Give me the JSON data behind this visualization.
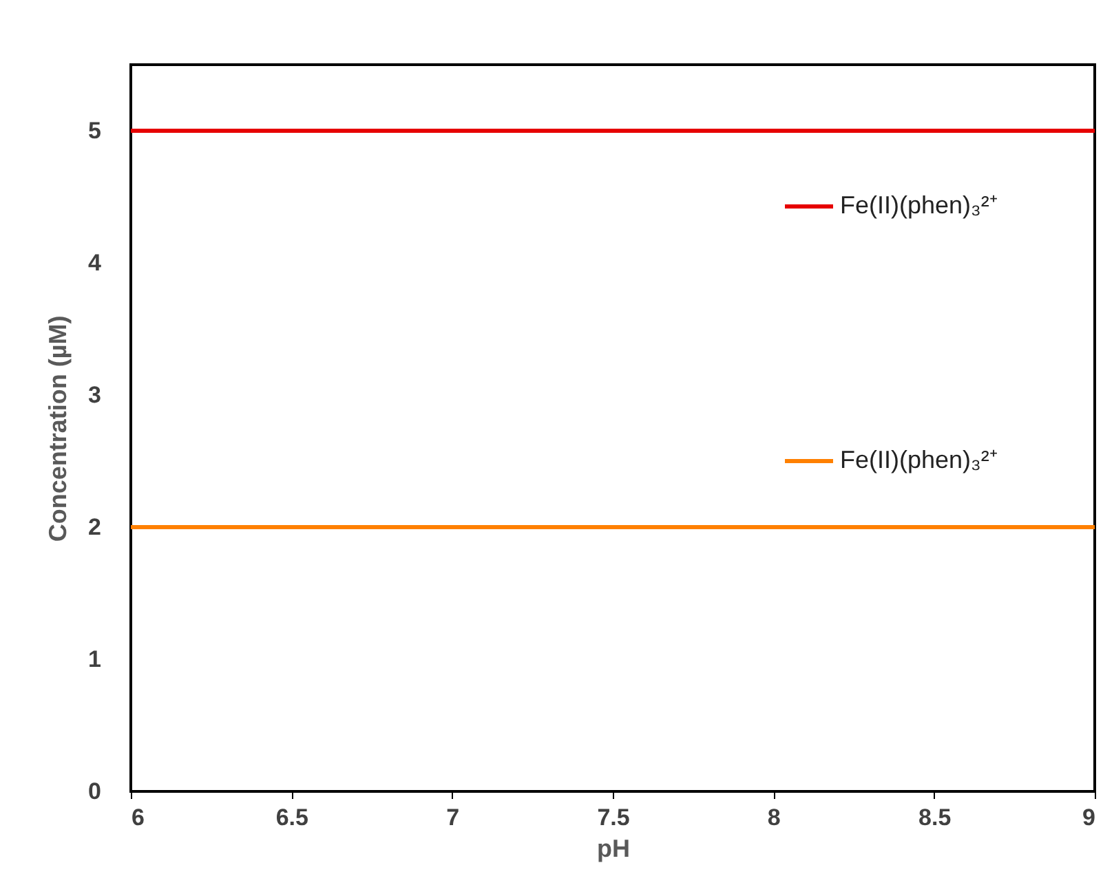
{
  "chart_data": {
    "type": "line",
    "xlabel": "pH",
    "ylabel": "Concentration (µM)",
    "xlim": [
      6,
      9
    ],
    "ylim": [
      0,
      5.5
    ],
    "xticks": [
      6,
      6.5,
      7,
      7.5,
      8,
      8.5,
      9
    ],
    "yticks": [
      0,
      1,
      2,
      3,
      4,
      5
    ],
    "x": [
      6,
      9
    ],
    "legend": "right",
    "marker": "none",
    "line_style": "solid",
    "series": [
      {
        "name": "Fe(II)(phen)₃²⁺",
        "color": "#e60000",
        "values": [
          5,
          5
        ]
      },
      {
        "name": "Fe(II)(phen)₃²⁺",
        "color": "#ff8000",
        "values": [
          2,
          2
        ]
      }
    ]
  }
}
